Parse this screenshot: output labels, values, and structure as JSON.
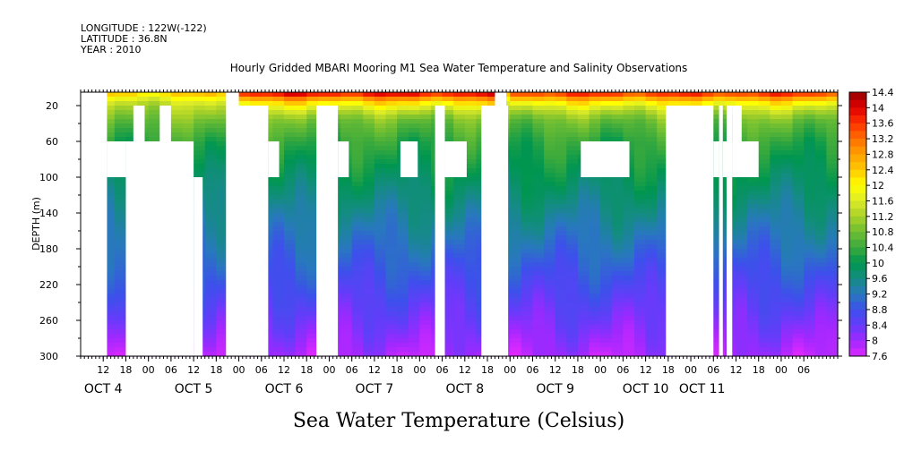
{
  "header": {
    "longitude": "LONGITUDE : 122W(-122)",
    "latitude": "LATITUDE : 36.8N",
    "year": "YEAR : 2010"
  },
  "chart_data": {
    "type": "heatmap",
    "title": "Hourly Gridded MBARI Mooring M1 Sea Water Temperature and Salinity Observations",
    "xlabel": "Sea Water Temperature (Celsius)",
    "ylabel": "DEPTH (m)",
    "x_range_hours": [
      0,
      201
    ],
    "x_start": "OCT 4 06:00",
    "ylim": [
      300,
      5
    ],
    "y_ticks": [
      20,
      60,
      100,
      140,
      180,
      220,
      260,
      300
    ],
    "hour_ticks": [
      {
        "h": 6,
        "label": "12"
      },
      {
        "h": 12,
        "label": "18"
      },
      {
        "h": 18,
        "label": "00"
      },
      {
        "h": 24,
        "label": "06"
      },
      {
        "h": 30,
        "label": "12"
      },
      {
        "h": 36,
        "label": "18"
      },
      {
        "h": 42,
        "label": "00"
      },
      {
        "h": 48,
        "label": "06"
      },
      {
        "h": 54,
        "label": "12"
      },
      {
        "h": 60,
        "label": "18"
      },
      {
        "h": 66,
        "label": "00"
      },
      {
        "h": 72,
        "label": "06"
      },
      {
        "h": 78,
        "label": "12"
      },
      {
        "h": 84,
        "label": "18"
      },
      {
        "h": 90,
        "label": "00"
      },
      {
        "h": 96,
        "label": "06"
      },
      {
        "h": 102,
        "label": "12"
      },
      {
        "h": 108,
        "label": "18"
      },
      {
        "h": 114,
        "label": "00"
      },
      {
        "h": 120,
        "label": "06"
      },
      {
        "h": 126,
        "label": "12"
      },
      {
        "h": 132,
        "label": "18"
      },
      {
        "h": 138,
        "label": "00"
      },
      {
        "h": 144,
        "label": "06"
      },
      {
        "h": 150,
        "label": "12"
      },
      {
        "h": 156,
        "label": "18"
      },
      {
        "h": 162,
        "label": "00"
      },
      {
        "h": 168,
        "label": "06"
      },
      {
        "h": 174,
        "label": "12"
      },
      {
        "h": 180,
        "label": "18"
      },
      {
        "h": 186,
        "label": "00"
      },
      {
        "h": 192,
        "label": "06"
      }
    ],
    "day_labels": [
      {
        "h": 6,
        "label": "OCT  4"
      },
      {
        "h": 30,
        "label": "OCT  5"
      },
      {
        "h": 54,
        "label": "OCT  6"
      },
      {
        "h": 78,
        "label": "OCT  7"
      },
      {
        "h": 102,
        "label": "OCT  8"
      },
      {
        "h": 126,
        "label": "OCT  9"
      },
      {
        "h": 150,
        "label": "OCT 10"
      },
      {
        "h": 165,
        "label": "OCT 11"
      }
    ],
    "colorbar": {
      "min": 7.6,
      "max": 14.4,
      "step": 0.2,
      "labels": [
        "14.4",
        "14",
        "13.6",
        "13.2",
        "12.8",
        "12.4",
        "12",
        "11.6",
        "11.2",
        "10.8",
        "10.4",
        "10",
        "9.6",
        "9.2",
        "8.8",
        "8.4",
        "8",
        "7.6"
      ]
    },
    "profile": {
      "depths": [
        5,
        10,
        15,
        20,
        30,
        40,
        60,
        80,
        100,
        120,
        150,
        180,
        200,
        220,
        250,
        280,
        300
      ],
      "temps": [
        12.5,
        12.0,
        11.6,
        11.3,
        11.0,
        10.7,
        10.3,
        10.1,
        9.9,
        9.7,
        9.4,
        9.1,
        8.9,
        8.7,
        8.4,
        8.1,
        7.9
      ]
    },
    "warm_periods": [
      {
        "from": 42,
        "to": 110,
        "surface": 14.2
      },
      {
        "from": 114,
        "to": 201,
        "surface": 13.9
      }
    ],
    "missing_data": [
      {
        "x0": 0,
        "x1": 7,
        "d0": 5,
        "d1": 300
      },
      {
        "x0": 7,
        "x1": 12,
        "d0": 60,
        "d1": 100
      },
      {
        "x0": 12,
        "x1": 30,
        "d0": 60,
        "d1": 300
      },
      {
        "x0": 14,
        "x1": 17,
        "d0": 20,
        "d1": 60
      },
      {
        "x0": 21,
        "x1": 24,
        "d0": 20,
        "d1": 60
      },
      {
        "x0": 30,
        "x1": 32.4,
        "d0": 100,
        "d1": 300
      },
      {
        "x0": 38.6,
        "x1": 42,
        "d0": 5,
        "d1": 20
      },
      {
        "x0": 38.6,
        "x1": 49.8,
        "d0": 20,
        "d1": 300
      },
      {
        "x0": 49.8,
        "x1": 52.7,
        "d0": 60,
        "d1": 100
      },
      {
        "x0": 62.6,
        "x1": 68.3,
        "d0": 20,
        "d1": 300
      },
      {
        "x0": 68.3,
        "x1": 71.2,
        "d0": 60,
        "d1": 100
      },
      {
        "x0": 84.9,
        "x1": 89.5,
        "d0": 60,
        "d1": 100
      },
      {
        "x0": 94.1,
        "x1": 96.7,
        "d0": 20,
        "d1": 300
      },
      {
        "x0": 96.7,
        "x1": 102.5,
        "d0": 60,
        "d1": 100
      },
      {
        "x0": 106.4,
        "x1": 113.5,
        "d0": 20,
        "d1": 300
      },
      {
        "x0": 110,
        "x1": 113,
        "d0": 5,
        "d1": 20
      },
      {
        "x0": 132.8,
        "x1": 145.7,
        "d0": 60,
        "d1": 100
      },
      {
        "x0": 155.4,
        "x1": 168,
        "d0": 20,
        "d1": 300
      },
      {
        "x0": 168,
        "x1": 169.5,
        "d0": 60,
        "d1": 100
      },
      {
        "x0": 169.5,
        "x1": 170.5,
        "d0": 20,
        "d1": 300
      },
      {
        "x0": 170.5,
        "x1": 173,
        "d0": 60,
        "d1": 100
      },
      {
        "x0": 171.5,
        "x1": 173,
        "d0": 20,
        "d1": 300
      },
      {
        "x0": 173,
        "x1": 175.5,
        "d0": 20,
        "d1": 60
      },
      {
        "x0": 173,
        "x1": 180,
        "d0": 60,
        "d1": 100
      }
    ]
  }
}
